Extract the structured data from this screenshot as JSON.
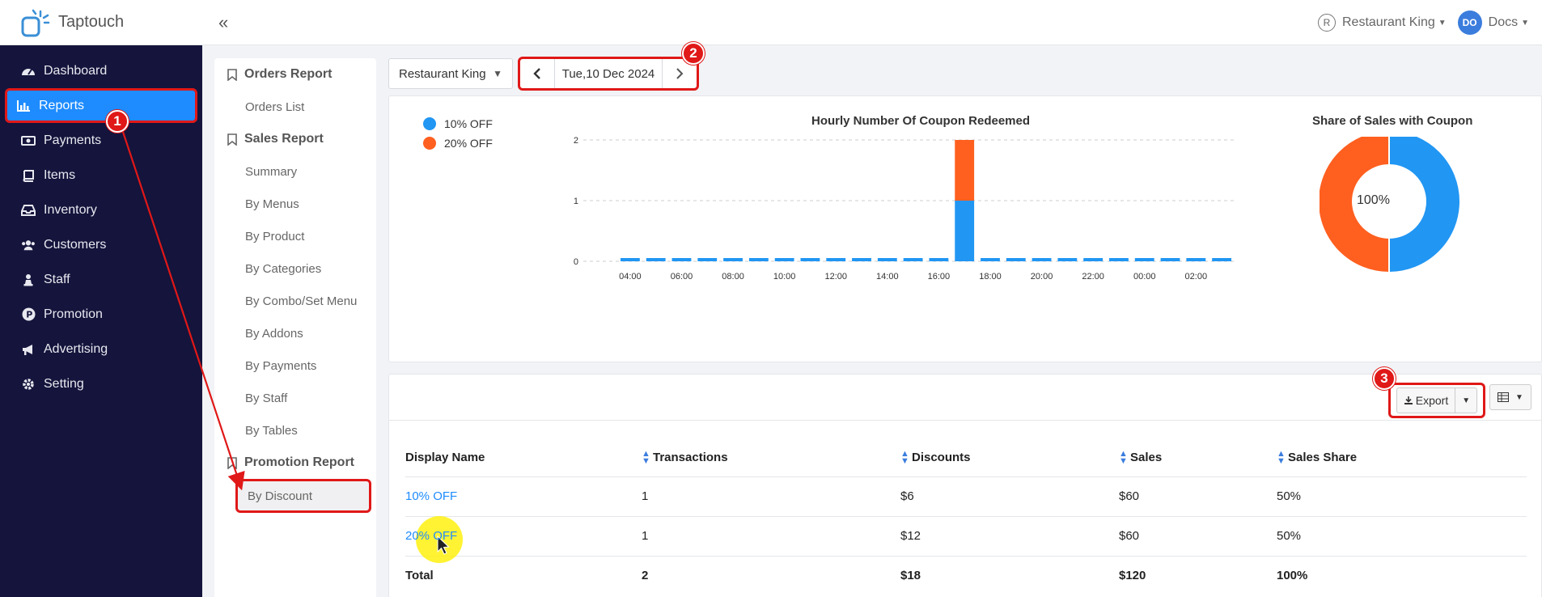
{
  "app": {
    "name": "Taptouch"
  },
  "sidebar": {
    "items": [
      {
        "label": "Dashboard",
        "icon": "dashboard-icon"
      },
      {
        "label": "Reports",
        "icon": "bar-chart-icon"
      },
      {
        "label": "Payments",
        "icon": "money-icon"
      },
      {
        "label": "Items",
        "icon": "book-icon"
      },
      {
        "label": "Inventory",
        "icon": "inbox-icon"
      },
      {
        "label": "Customers",
        "icon": "users-icon"
      },
      {
        "label": "Staff",
        "icon": "chess-pawn-icon"
      },
      {
        "label": "Promotion",
        "icon": "promotion-p-icon"
      },
      {
        "label": "Advertising",
        "icon": "megaphone-icon"
      },
      {
        "label": "Setting",
        "icon": "gear-icon"
      }
    ]
  },
  "topbar": {
    "collapse_glyph": "«",
    "restaurant_badge": "R",
    "restaurant": "Restaurant King",
    "user_initials": "DO",
    "user": "Docs"
  },
  "submenu": {
    "orders_header": "Orders Report",
    "orders_list": "Orders List",
    "sales_header": "Sales Report",
    "sales_items": [
      "Summary",
      "By Menus",
      "By Product",
      "By Categories",
      "By Combo/Set Menu",
      "By Addons",
      "By Payments",
      "By Staff",
      "By Tables"
    ],
    "promotion_header": "Promotion Report",
    "by_discount": "By Discount"
  },
  "filters": {
    "restaurant": "Restaurant King",
    "date": "Tue,10 Dec 2024"
  },
  "colors": {
    "blue": "#2196f3",
    "orange": "#ff5f1f",
    "accent": "#1e8cff",
    "annotation": "#e01818"
  },
  "chart_data": [
    {
      "type": "bar",
      "title": "Hourly Number Of Coupon Redeemed",
      "stacked": true,
      "categories": [
        "04:00",
        "05:00",
        "06:00",
        "07:00",
        "08:00",
        "09:00",
        "10:00",
        "11:00",
        "12:00",
        "13:00",
        "14:00",
        "15:00",
        "16:00",
        "17:00",
        "18:00",
        "19:00",
        "20:00",
        "21:00",
        "22:00",
        "23:00",
        "00:00",
        "01:00",
        "02:00",
        "03:00"
      ],
      "tick_labels": [
        "04:00",
        "06:00",
        "08:00",
        "10:00",
        "12:00",
        "14:00",
        "16:00",
        "18:00",
        "20:00",
        "22:00",
        "00:00",
        "02:00"
      ],
      "series": [
        {
          "name": "10% OFF",
          "color": "#2196f3",
          "values": [
            0,
            0,
            0,
            0,
            0,
            0,
            0,
            0,
            0,
            0,
            0,
            0,
            0,
            1,
            0,
            0,
            0,
            0,
            0,
            0,
            0,
            0,
            0,
            0
          ]
        },
        {
          "name": "20% OFF",
          "color": "#ff5f1f",
          "values": [
            0,
            0,
            0,
            0,
            0,
            0,
            0,
            0,
            0,
            0,
            0,
            0,
            0,
            1,
            0,
            0,
            0,
            0,
            0,
            0,
            0,
            0,
            0,
            0
          ]
        }
      ],
      "ylim": [
        0,
        2
      ],
      "yticks": [
        0,
        1,
        2
      ],
      "grid": true,
      "legend": "top-left"
    },
    {
      "type": "pie",
      "title": "Share of Sales with Coupon",
      "donut": true,
      "center_label": "100%",
      "slices": [
        {
          "name": "10% OFF",
          "value": 50,
          "color": "#2196f3"
        },
        {
          "name": "20% OFF",
          "value": 50,
          "color": "#ff5f1f"
        }
      ]
    }
  ],
  "toolbar": {
    "export_label": "Export"
  },
  "table": {
    "columns": [
      "Display Name",
      "Transactions",
      "Discounts",
      "Sales",
      "Sales Share"
    ],
    "rows": [
      [
        "10% OFF",
        "1",
        "$6",
        "$60",
        "50%"
      ],
      [
        "20% OFF",
        "1",
        "$12",
        "$60",
        "50%"
      ]
    ],
    "total": [
      "Total",
      "2",
      "$18",
      "$120",
      "100%"
    ]
  },
  "annotations": [
    "1",
    "2",
    "3"
  ]
}
